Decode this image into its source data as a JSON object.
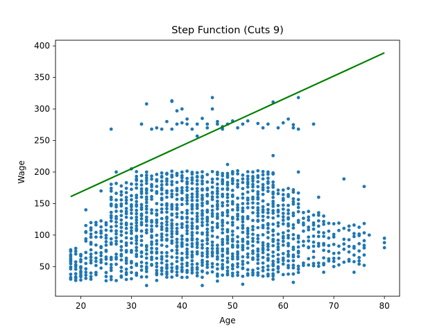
{
  "chart_data": {
    "type": "scatter",
    "title": "Step Function (Cuts 9)",
    "xlabel": "Age",
    "ylabel": "Wage",
    "xlim": [
      15,
      83
    ],
    "ylim": [
      3,
      409
    ],
    "xticks": [
      20,
      30,
      40,
      50,
      60,
      70,
      80
    ],
    "yticks": [
      50,
      100,
      150,
      200,
      250,
      300,
      350,
      400
    ],
    "grid": false,
    "series": [
      {
        "kind": "scatter",
        "color": "#1f77b4",
        "clusters": [
          {
            "age_min": 18,
            "age_max": 80,
            "bands": [
              {
                "age_min": 18,
                "age_max": 20,
                "wage_min": 30,
                "wage_max": 78,
                "step": 4
              },
              {
                "age_min": 21,
                "age_max": 25,
                "wage_min": 30,
                "wage_max": 125,
                "step": 6
              },
              {
                "age_min": 26,
                "age_max": 30,
                "wage_min": 30,
                "wage_max": 180,
                "step": 6
              },
              {
                "age_min": 31,
                "age_max": 58,
                "wage_min": 35,
                "wage_max": 200,
                "step": 5
              },
              {
                "age_min": 59,
                "age_max": 63,
                "wage_min": 40,
                "wage_max": 175,
                "step": 6
              },
              {
                "age_min": 64,
                "age_max": 68,
                "wage_min": 50,
                "wage_max": 140,
                "step": 8
              },
              {
                "age_min": 69,
                "age_max": 76,
                "wage_min": 55,
                "wage_max": 120,
                "step": 10
              }
            ]
          }
        ],
        "points": [
          {
            "x": 18,
            "y": 60
          },
          {
            "x": 18,
            "y": 74
          },
          {
            "x": 19,
            "y": 28
          },
          {
            "x": 20,
            "y": 40
          },
          {
            "x": 21,
            "y": 140
          },
          {
            "x": 22,
            "y": 30
          },
          {
            "x": 24,
            "y": 170
          },
          {
            "x": 26,
            "y": 268
          },
          {
            "x": 27,
            "y": 200
          },
          {
            "x": 28,
            "y": 35
          },
          {
            "x": 29,
            "y": 183
          },
          {
            "x": 30,
            "y": 205
          },
          {
            "x": 32,
            "y": 276
          },
          {
            "x": 33,
            "y": 20
          },
          {
            "x": 33,
            "y": 308
          },
          {
            "x": 34,
            "y": 268
          },
          {
            "x": 35,
            "y": 270
          },
          {
            "x": 36,
            "y": 268
          },
          {
            "x": 37,
            "y": 280
          },
          {
            "x": 38,
            "y": 268
          },
          {
            "x": 38,
            "y": 312
          },
          {
            "x": 38,
            "y": 313
          },
          {
            "x": 39,
            "y": 297
          },
          {
            "x": 39,
            "y": 276
          },
          {
            "x": 40,
            "y": 300
          },
          {
            "x": 40,
            "y": 278
          },
          {
            "x": 41,
            "y": 284
          },
          {
            "x": 41,
            "y": 276
          },
          {
            "x": 42,
            "y": 268
          },
          {
            "x": 43,
            "y": 276
          },
          {
            "x": 43,
            "y": 257
          },
          {
            "x": 44,
            "y": 285
          },
          {
            "x": 45,
            "y": 276
          },
          {
            "x": 45,
            "y": 270
          },
          {
            "x": 46,
            "y": 318
          },
          {
            "x": 46,
            "y": 300
          },
          {
            "x": 47,
            "y": 276
          },
          {
            "x": 47,
            "y": 280
          },
          {
            "x": 48,
            "y": 272
          },
          {
            "x": 48,
            "y": 268
          },
          {
            "x": 49,
            "y": 276
          },
          {
            "x": 49,
            "y": 212
          },
          {
            "x": 50,
            "y": 281
          },
          {
            "x": 50,
            "y": 200
          },
          {
            "x": 51,
            "y": 270
          },
          {
            "x": 52,
            "y": 276
          },
          {
            "x": 53,
            "y": 281
          },
          {
            "x": 54,
            "y": 200
          },
          {
            "x": 55,
            "y": 277
          },
          {
            "x": 56,
            "y": 270
          },
          {
            "x": 57,
            "y": 276
          },
          {
            "x": 57,
            "y": 200
          },
          {
            "x": 58,
            "y": 226
          },
          {
            "x": 58,
            "y": 311
          },
          {
            "x": 59,
            "y": 270
          },
          {
            "x": 60,
            "y": 278
          },
          {
            "x": 61,
            "y": 284
          },
          {
            "x": 62,
            "y": 270
          },
          {
            "x": 62,
            "y": 275
          },
          {
            "x": 63,
            "y": 318
          },
          {
            "x": 63,
            "y": 268
          },
          {
            "x": 63,
            "y": 200
          },
          {
            "x": 66,
            "y": 276
          },
          {
            "x": 67,
            "y": 160
          },
          {
            "x": 72,
            "y": 189
          },
          {
            "x": 76,
            "y": 177
          },
          {
            "x": 80,
            "y": 95
          },
          {
            "x": 80,
            "y": 88
          },
          {
            "x": 80,
            "y": 80
          },
          {
            "x": 77,
            "y": 100
          },
          {
            "x": 75,
            "y": 54
          },
          {
            "x": 74,
            "y": 41
          },
          {
            "x": 70,
            "y": 50
          },
          {
            "x": 68,
            "y": 41
          },
          {
            "x": 65,
            "y": 80
          },
          {
            "x": 62,
            "y": 25
          },
          {
            "x": 44,
            "y": 20
          },
          {
            "x": 47,
            "y": 27
          },
          {
            "x": 52,
            "y": 22
          },
          {
            "x": 37,
            "y": 38
          },
          {
            "x": 35,
            "y": 28
          },
          {
            "x": 58,
            "y": 30
          }
        ]
      },
      {
        "kind": "line",
        "color": "#008000",
        "x": [
          18,
          80
        ],
        "y": [
          161,
          389
        ]
      }
    ]
  }
}
